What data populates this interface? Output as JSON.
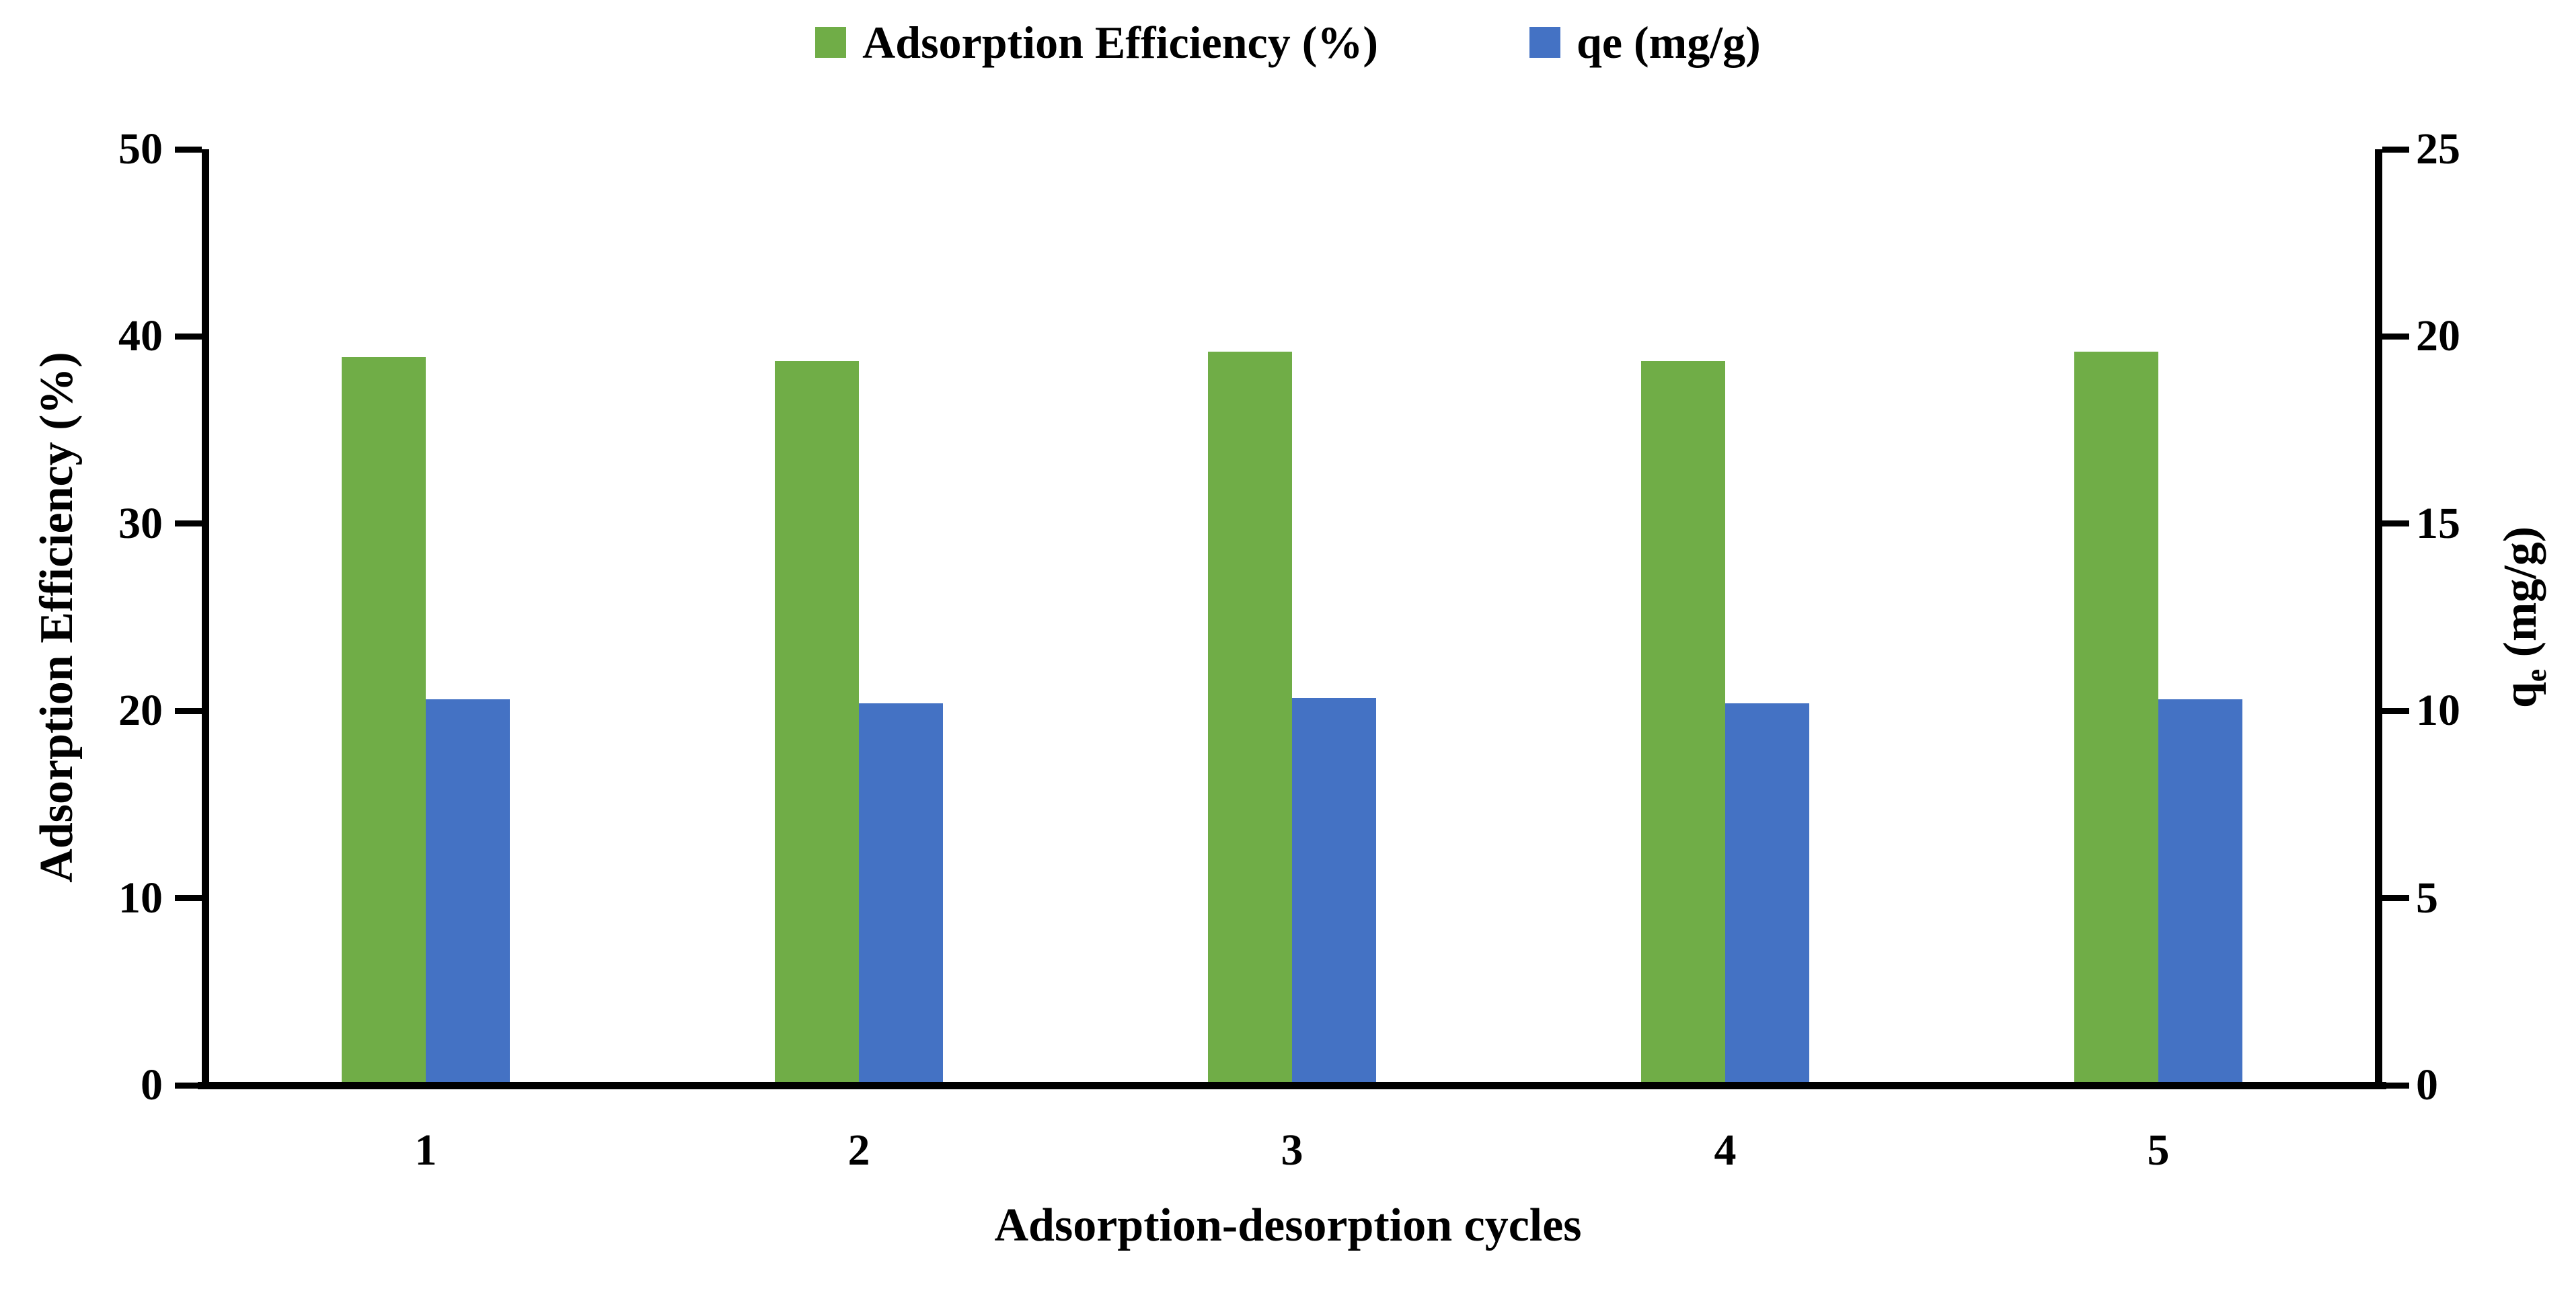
{
  "chart_data": {
    "type": "bar",
    "title": "",
    "categories": [
      "1",
      "2",
      "3",
      "4",
      "5"
    ],
    "series": [
      {
        "name": "Adsorption Efficiency (%)",
        "axis": "left",
        "color": "#70AD47",
        "values": [
          38.9,
          38.7,
          39.2,
          38.7,
          39.2
        ]
      },
      {
        "name": "qe (mg/g)",
        "axis": "right",
        "color": "#4472C4",
        "values": [
          10.3,
          10.2,
          10.35,
          10.2,
          10.3
        ]
      }
    ],
    "xlabel": "Adsorption-desorption cycles",
    "left_axis": {
      "label": "Adsorption Efficiency (%)",
      "min": 0,
      "max": 50,
      "tick_labels": [
        "0",
        "10",
        "20",
        "30",
        "40",
        "50"
      ]
    },
    "right_axis": {
      "label_parts": {
        "pre": "q",
        "sub": "e",
        "post": " (mg/g)"
      },
      "min": 0,
      "max": 25,
      "tick_labels": [
        "0",
        "5",
        "10",
        "15",
        "20",
        "25"
      ]
    },
    "legend_position": "top",
    "grid": false,
    "axis_color": "#000000",
    "background": "#FFFFFF"
  }
}
